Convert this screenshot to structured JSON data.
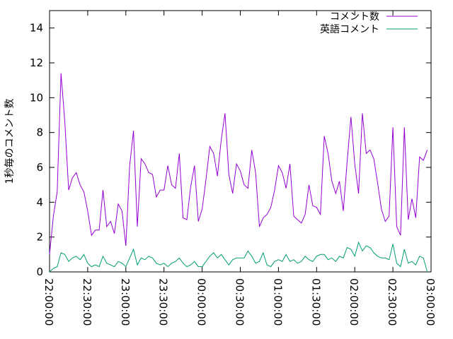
{
  "chart_data": {
    "type": "line",
    "ylabel": "1秒毎のコメント数",
    "xlabel": "",
    "ylim": [
      0,
      15
    ],
    "yticks": [
      0,
      2,
      4,
      6,
      8,
      10,
      12,
      14
    ],
    "xticks": [
      "22:00:00",
      "22:30:00",
      "23:00:00",
      "23:30:00",
      "00:00:00",
      "00:30:00",
      "01:00:00",
      "01:30:00",
      "02:00:00",
      "02:30:00",
      "03:00:00"
    ],
    "x_start": "22:00:00",
    "x_end": "03:00:00",
    "x_step_minutes": 3,
    "legend_position": "top-right",
    "grid": false,
    "series": [
      {
        "name": "コメント数",
        "color": "#9400d3",
        "values": [
          1.0,
          3.2,
          4.6,
          11.4,
          8.6,
          4.7,
          5.4,
          5.7,
          5.0,
          4.6,
          3.5,
          2.1,
          2.4,
          2.4,
          4.7,
          2.6,
          2.9,
          2.2,
          3.9,
          3.5,
          1.5,
          6.1,
          8.1,
          2.6,
          6.5,
          6.2,
          5.7,
          5.6,
          4.3,
          4.7,
          4.7,
          6.1,
          5.0,
          4.8,
          6.8,
          3.1,
          3.0,
          4.9,
          6.1,
          2.9,
          3.6,
          5.3,
          7.2,
          6.8,
          5.5,
          7.6,
          9.1,
          5.6,
          4.5,
          6.2,
          5.8,
          5.0,
          4.8,
          7.0,
          5.7,
          2.6,
          3.1,
          3.3,
          3.7,
          4.7,
          6.1,
          5.7,
          4.8,
          6.2,
          3.2,
          3.0,
          2.8,
          3.3,
          5.0,
          3.8,
          3.7,
          3.3,
          7.8,
          6.8,
          5.2,
          4.5,
          5.2,
          3.5,
          6.3,
          8.9,
          6.2,
          4.5,
          9.1,
          6.8,
          7.0,
          6.5,
          5.1,
          3.6,
          2.9,
          3.2,
          8.3,
          2.6,
          2.1,
          8.3,
          3.0,
          4.2,
          3.1,
          6.6,
          6.4,
          7.0
        ]
      },
      {
        "name": "英語コメント",
        "color": "#009e73",
        "values": [
          0.0,
          0.2,
          0.3,
          1.1,
          1.0,
          0.6,
          0.8,
          0.9,
          0.7,
          1.0,
          0.5,
          0.3,
          0.4,
          0.3,
          0.9,
          0.5,
          0.4,
          0.3,
          0.6,
          0.5,
          0.3,
          0.8,
          1.3,
          0.4,
          0.8,
          0.7,
          0.9,
          0.8,
          0.5,
          0.4,
          0.5,
          0.3,
          0.5,
          0.6,
          0.8,
          0.5,
          0.3,
          0.4,
          0.6,
          0.3,
          0.3,
          0.6,
          0.9,
          1.1,
          0.8,
          1.0,
          0.7,
          0.4,
          0.7,
          0.8,
          0.8,
          0.8,
          1.2,
          0.9,
          0.5,
          0.6,
          1.1,
          0.4,
          0.3,
          0.6,
          0.7,
          0.6,
          1.0,
          0.6,
          0.7,
          0.5,
          0.6,
          0.9,
          0.7,
          0.6,
          0.9,
          1.0,
          1.0,
          0.7,
          0.8,
          0.6,
          0.9,
          0.8,
          1.4,
          1.3,
          0.9,
          1.7,
          1.2,
          1.5,
          1.4,
          1.1,
          0.9,
          0.8,
          0.8,
          0.7,
          1.6,
          0.5,
          0.3,
          1.3,
          0.5,
          0.6,
          0.4,
          0.9,
          0.8,
          0.0
        ]
      }
    ]
  }
}
